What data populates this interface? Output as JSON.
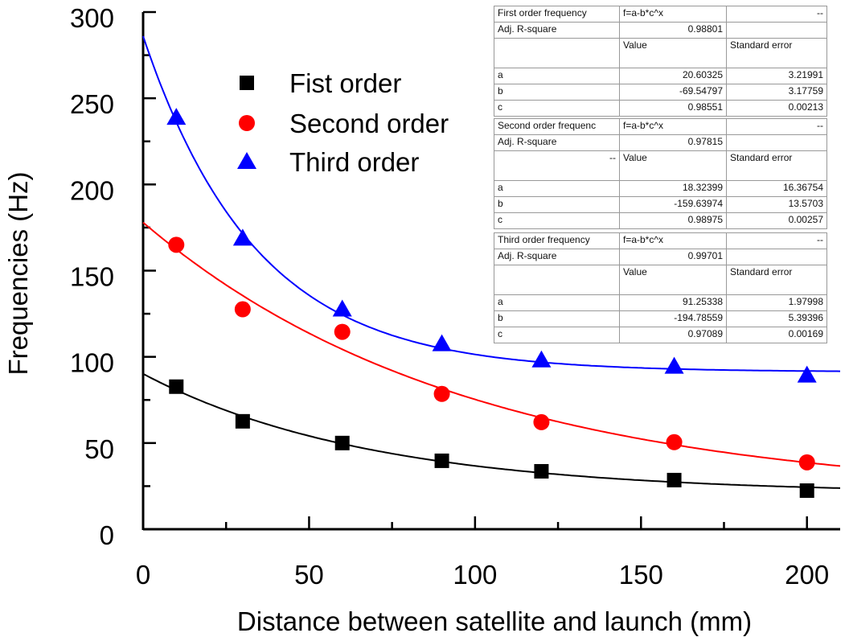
{
  "chart_data": {
    "type": "scatter",
    "xlabel": "Distance between satellite and launch (mm)",
    "ylabel": "Frequencies (Hz)",
    "xlim": [
      0,
      210
    ],
    "ylim": [
      0,
      300
    ],
    "xticks": [
      0,
      50,
      100,
      150,
      200
    ],
    "yticks": [
      0,
      50,
      100,
      150,
      200,
      250,
      300
    ],
    "grid": false,
    "legend_placement": "top-left",
    "x": [
      10,
      30,
      60,
      90,
      120,
      160,
      200
    ],
    "series": [
      {
        "name": "Fist order",
        "marker": "square",
        "color": "#000000",
        "values": [
          82.7,
          62.6,
          50.0,
          39.7,
          33.6,
          28.5,
          22.4
        ],
        "fit": {
          "a": 20.60325,
          "b": -69.54797,
          "c": 0.98551
        }
      },
      {
        "name": "Second order",
        "marker": "circle",
        "color": "#ff0000",
        "values": [
          165.0,
          127.6,
          114.5,
          78.5,
          62.1,
          50.5,
          38.8
        ],
        "fit": {
          "a": 18.32399,
          "b": -159.63974,
          "c": 0.98975
        }
      },
      {
        "name": "Third order",
        "marker": "triangle",
        "color": "#0000ff",
        "values": [
          238.8,
          168.7,
          127.6,
          107.5,
          98.1,
          94.4,
          89.3
        ],
        "fit": {
          "a": 91.25338,
          "b": -194.78559,
          "c": 0.97089
        }
      }
    ],
    "fit_tables": [
      {
        "title": "First order  frequency",
        "formula": "f=a-b*c^x",
        "dash": "--",
        "r2_label": "Adj. R-square",
        "r2": "0.98801",
        "value_header": "Value",
        "se_header": "Standard error",
        "blank": "",
        "rows": [
          {
            "p": "a",
            "v": "20.60325",
            "se": "3.21991"
          },
          {
            "p": "b",
            "v": "-69.54797",
            "se": "3.17759"
          },
          {
            "p": "c",
            "v": "0.98551",
            "se": "0.00213"
          }
        ]
      },
      {
        "title": "Second order frequenc",
        "formula": "f=a-b*c^x",
        "dash": "--",
        "r2_label": "Adj. R-square",
        "r2": "0.97815",
        "value_header": "Value",
        "se_header": "Standard error",
        "blank": "--",
        "rows": [
          {
            "p": "a",
            "v": "18.32399",
            "se": "16.36754"
          },
          {
            "p": "b",
            "v": "-159.63974",
            "se": "13.5703"
          },
          {
            "p": "c",
            "v": "0.98975",
            "se": "0.00257"
          }
        ]
      },
      {
        "title": "Third order frequency",
        "formula": "f=a-b*c^x",
        "dash": "--",
        "r2_label": "Adj. R-square",
        "r2": "0.99701",
        "value_header": "Value",
        "se_header": "Standard error",
        "blank": "",
        "rows": [
          {
            "p": "a",
            "v": "91.25338",
            "se": "1.97998"
          },
          {
            "p": "b",
            "v": "-194.78559",
            "se": "5.39396"
          },
          {
            "p": "c",
            "v": "0.97089",
            "se": "0.00169"
          }
        ]
      }
    ]
  }
}
